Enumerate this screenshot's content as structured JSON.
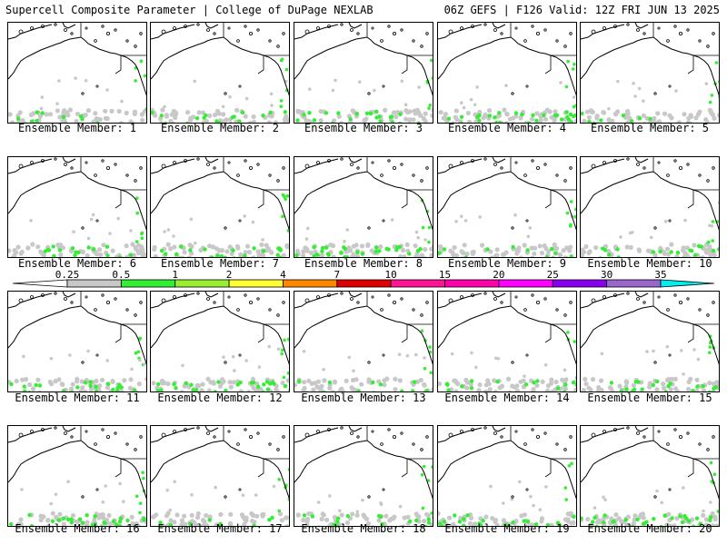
{
  "header": {
    "left": "Supercell Composite Parameter | College of DuPage NEXLAB",
    "right": "06Z GEFS | F126 Valid: 12Z FRI JUN 13 2025"
  },
  "members": [
    {
      "label": "Ensemble Member: 1"
    },
    {
      "label": "Ensemble Member: 2"
    },
    {
      "label": "Ensemble Member: 3"
    },
    {
      "label": "Ensemble Member: 4"
    },
    {
      "label": "Ensemble Member: 5"
    },
    {
      "label": "Ensemble Member: 6"
    },
    {
      "label": "Ensemble Member: 7"
    },
    {
      "label": "Ensemble Member: 8"
    },
    {
      "label": "Ensemble Member: 9"
    },
    {
      "label": "Ensemble Member: 10"
    },
    {
      "label": "Ensemble Member: 11"
    },
    {
      "label": "Ensemble Member: 12"
    },
    {
      "label": "Ensemble Member: 13"
    },
    {
      "label": "Ensemble Member: 14"
    },
    {
      "label": "Ensemble Member: 15"
    },
    {
      "label": "Ensemble Member: 16"
    },
    {
      "label": "Ensemble Member: 17"
    },
    {
      "label": "Ensemble Member: 18"
    },
    {
      "label": "Ensemble Member: 19"
    },
    {
      "label": "Ensemble Member: 20"
    }
  ],
  "colorbar": {
    "labels": [
      "0.25",
      "0.5",
      "1",
      "2",
      "4",
      "7",
      "10",
      "15",
      "20",
      "25",
      "30",
      "35"
    ],
    "colors": [
      "#c8c8c8",
      "#33ee33",
      "#99ee33",
      "#ffff33",
      "#ff8800",
      "#dd0000",
      "#ff1493",
      "#ff00aa",
      "#ff00ff",
      "#8800ee",
      "#9966cc",
      "#00eeee"
    ]
  },
  "colors": {
    "land_line": "#000000",
    "field_low": "#c8c8c8",
    "field_mid": "#33ee33"
  }
}
